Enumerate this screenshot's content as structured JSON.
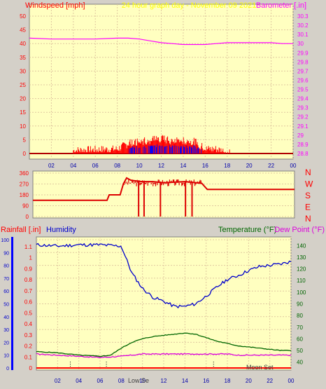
{
  "title": "24 hour graph day - November 09 2021",
  "colors": {
    "plot_bg": "#ffffc0",
    "frame_bg": "#d4d0c8",
    "grid": "#e0c8a0",
    "wind": "#ff0000",
    "gust": "#0000ff",
    "baro": "#ff00ff",
    "humidity": "#0000cc",
    "temp": "#006600",
    "dew": "#dd00dd",
    "rain": "#ff0000",
    "title": "#ffff00"
  },
  "x_ticks": [
    "02",
    "04",
    "06",
    "08",
    "10",
    "12",
    "14",
    "16",
    "18",
    "20",
    "22",
    "00"
  ],
  "panel1": {
    "left_label": "Windspeed [mph]",
    "right_label": "Barometer [.in]",
    "left_ticks": [
      "0",
      "5",
      "10",
      "15",
      "20",
      "25",
      "30",
      "35",
      "40",
      "45",
      "50"
    ],
    "right_ticks": [
      "28.8",
      "28.9",
      "29",
      "29.1",
      "29.2",
      "29.3",
      "29.4",
      "29.5",
      "29.6",
      "29.7",
      "29.8",
      "29.9",
      "30",
      "30.1",
      "30.2",
      "30.3"
    ]
  },
  "panel2": {
    "left_ticks": [
      "0",
      "90",
      "180",
      "270",
      "360"
    ],
    "right_letters": [
      "N",
      "W",
      "S",
      "E",
      "N"
    ]
  },
  "panel3": {
    "rain_label": "Rainfall [.in]",
    "humidity_label": "Humidity",
    "temp_label": "Temperature (°F)",
    "dew_label": "Dew Point (°F)",
    "left_ticks_humidity": [
      "0",
      "10",
      "20",
      "30",
      "40",
      "50",
      "60",
      "70",
      "80",
      "90",
      "100"
    ],
    "left_ticks_rain": [
      "0",
      "0.1",
      "0.2",
      "0.3",
      "0.4",
      "0.5",
      "0.6",
      "0.7",
      "0.8",
      "0.9",
      "1",
      "1.1"
    ],
    "right_ticks": [
      "40",
      "50",
      "60",
      "70",
      "80",
      "90",
      "100",
      "110",
      "120",
      "130",
      "140"
    ],
    "marker_low": "Low Se",
    "marker_moon": "Moon Set"
  },
  "chart_data": [
    {
      "type": "line",
      "series": [
        {
          "name": "Windspeed [mph]",
          "x": [
            0,
            8,
            9,
            10,
            11,
            12,
            13,
            14,
            15,
            16,
            17,
            18,
            19,
            24
          ],
          "values": [
            0,
            1,
            3,
            4,
            4,
            5,
            4,
            4,
            4,
            1,
            1,
            0,
            0,
            0
          ]
        },
        {
          "name": "Barometer [.in]",
          "x": [
            0,
            2,
            4,
            6,
            8,
            9,
            10,
            11,
            12,
            13,
            14,
            15,
            16,
            17,
            18,
            19,
            20,
            21,
            22,
            23,
            24
          ],
          "values": [
            30.06,
            30.05,
            30.05,
            30.05,
            30.06,
            30.06,
            30.05,
            30.03,
            30.01,
            30.0,
            29.99,
            29.99,
            29.99,
            30.0,
            30.01,
            30.01,
            30.01,
            30.01,
            30.01,
            30.0,
            30.0
          ]
        }
      ],
      "xlim": [
        0,
        24
      ],
      "ylim_left": [
        0,
        50
      ],
      "ylim_right": [
        28.8,
        30.3
      ]
    },
    {
      "type": "line",
      "series": [
        {
          "name": "Wind direction",
          "x": [
            0,
            6.8,
            7,
            8,
            8.3,
            8.6,
            9,
            10,
            11,
            12,
            13,
            14,
            15,
            15.5,
            16,
            24
          ],
          "values": [
            135,
            135,
            180,
            180,
            270,
            320,
            300,
            290,
            290,
            280,
            285,
            290,
            280,
            275,
            225,
            225
          ]
        }
      ],
      "ylim": [
        0,
        360
      ]
    },
    {
      "type": "line",
      "series": [
        {
          "name": "Humidity",
          "x": [
            0,
            2,
            4,
            6,
            8,
            9,
            10,
            11,
            12,
            13,
            14,
            15,
            16,
            17,
            18,
            19,
            20,
            21,
            22,
            23,
            24
          ],
          "values": [
            96,
            95,
            96,
            96,
            95,
            74,
            62,
            55,
            52,
            48,
            48,
            50,
            56,
            63,
            69,
            72,
            76,
            79,
            80,
            81,
            83
          ]
        },
        {
          "name": "Temperature (°F)",
          "x": [
            0,
            2,
            4,
            6,
            7,
            8,
            9,
            10,
            11,
            12,
            13,
            14,
            15,
            16,
            17,
            18,
            19,
            20,
            21,
            22,
            23,
            24
          ],
          "values": [
            49,
            48,
            46,
            45,
            46,
            52,
            57,
            60,
            62,
            63,
            64,
            65,
            64,
            61,
            58,
            56,
            54,
            53,
            52,
            51,
            50,
            50
          ]
        },
        {
          "name": "Dew Point (°F)",
          "x": [
            0,
            2,
            4,
            6,
            8,
            9,
            10,
            11,
            12,
            13,
            14,
            15,
            16,
            17,
            18,
            19,
            20,
            21,
            22,
            23,
            24
          ],
          "values": [
            47,
            46,
            45,
            44,
            45,
            46,
            47,
            47,
            47,
            47,
            47,
            47,
            47,
            47,
            47,
            46,
            46,
            46,
            46,
            46,
            46
          ]
        },
        {
          "name": "Rainfall [.in]",
          "x": [
            0,
            24
          ],
          "values": [
            0,
            0
          ]
        }
      ],
      "ylim_humidity": [
        0,
        100
      ],
      "ylim_rain": [
        0,
        1.1
      ],
      "ylim_temp": [
        35,
        145
      ]
    }
  ]
}
